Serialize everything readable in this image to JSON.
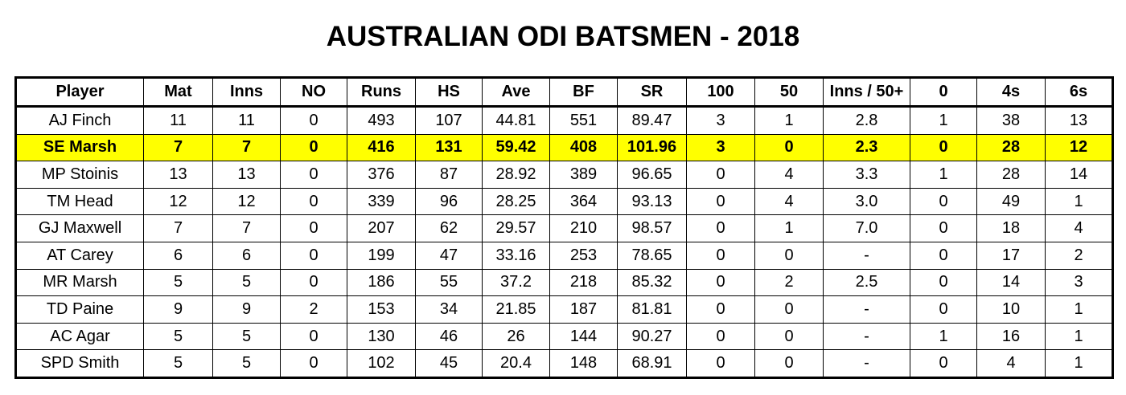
{
  "title": "AUSTRALIAN ODI BATSMEN - 2018",
  "table": {
    "header": [
      "Player",
      "Mat",
      "Inns",
      "NO",
      "Runs",
      "HS",
      "Ave",
      "BF",
      "SR",
      "100",
      "50",
      "Inns / 50+",
      "0",
      "4s",
      "6s"
    ],
    "rows": [
      [
        "AJ Finch",
        "11",
        "11",
        "0",
        "493",
        "107",
        "44.81",
        "551",
        "89.47",
        "3",
        "1",
        "2.8",
        "1",
        "38",
        "13"
      ],
      [
        "SE Marsh",
        "7",
        "7",
        "0",
        "416",
        "131",
        "59.42",
        "408",
        "101.96",
        "3",
        "0",
        "2.3",
        "0",
        "28",
        "12"
      ],
      [
        "MP Stoinis",
        "13",
        "13",
        "0",
        "376",
        "87",
        "28.92",
        "389",
        "96.65",
        "0",
        "4",
        "3.3",
        "1",
        "28",
        "14"
      ],
      [
        "TM Head",
        "12",
        "12",
        "0",
        "339",
        "96",
        "28.25",
        "364",
        "93.13",
        "0",
        "4",
        "3.0",
        "0",
        "49",
        "1"
      ],
      [
        "GJ Maxwell",
        "7",
        "7",
        "0",
        "207",
        "62",
        "29.57",
        "210",
        "98.57",
        "0",
        "1",
        "7.0",
        "0",
        "18",
        "4"
      ],
      [
        "AT Carey",
        "6",
        "6",
        "0",
        "199",
        "47",
        "33.16",
        "253",
        "78.65",
        "0",
        "0",
        "-",
        "0",
        "17",
        "2"
      ],
      [
        "MR Marsh",
        "5",
        "5",
        "0",
        "186",
        "55",
        "37.2",
        "218",
        "85.32",
        "0",
        "2",
        "2.5",
        "0",
        "14",
        "3"
      ],
      [
        "TD Paine",
        "9",
        "9",
        "2",
        "153",
        "34",
        "21.85",
        "187",
        "81.81",
        "0",
        "0",
        "-",
        "0",
        "10",
        "1"
      ],
      [
        "AC Agar",
        "5",
        "5",
        "0",
        "130",
        "46",
        "26",
        "144",
        "90.27",
        "0",
        "0",
        "-",
        "1",
        "16",
        "1"
      ],
      [
        "SPD Smith",
        "5",
        "5",
        "0",
        "102",
        "45",
        "20.4",
        "148",
        "68.91",
        "0",
        "0",
        "-",
        "0",
        "4",
        "1"
      ]
    ],
    "highlight_row": 1,
    "highlight_color": "#ffff00"
  }
}
